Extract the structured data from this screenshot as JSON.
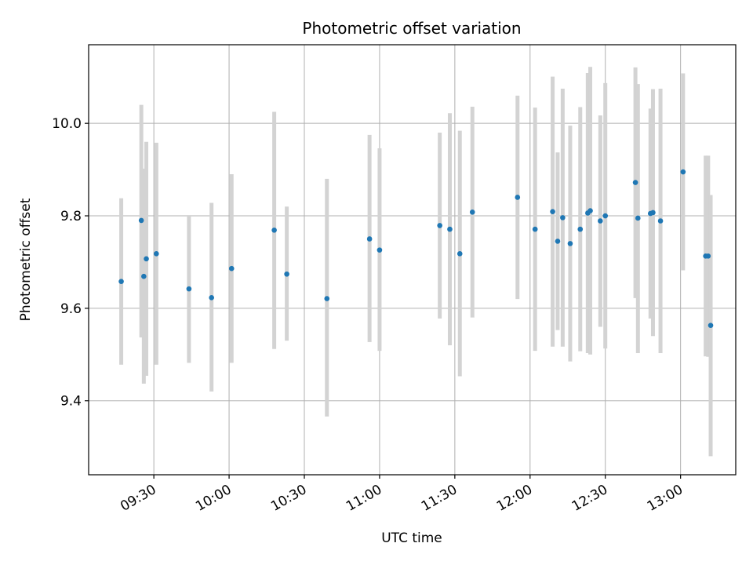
{
  "chart_data": {
    "type": "scatter",
    "title": "Photometric offset variation",
    "xlabel": "UTC time",
    "ylabel": "Photometric offset",
    "x_ticks": [
      "09:30",
      "10:00",
      "10:30",
      "11:00",
      "11:30",
      "12:00",
      "12:30",
      "13:00"
    ],
    "y_ticks": [
      "9.4",
      "9.6",
      "9.8",
      "10.0"
    ],
    "ylim": [
      9.24,
      10.17
    ],
    "xlim": [
      "09:04",
      "13:22"
    ],
    "grid": true,
    "colors": {
      "point": "#1f77b4",
      "errorbar": "#d3d3d3",
      "grid": "#b0b0b0"
    },
    "points": [
      {
        "x": "09:17",
        "y": 9.658,
        "low": 9.478,
        "high": 9.838
      },
      {
        "x": "09:25",
        "y": 9.79,
        "low": 9.537,
        "high": 10.04
      },
      {
        "x": "09:26",
        "y": 9.669,
        "low": 9.437,
        "high": 9.902
      },
      {
        "x": "09:27",
        "y": 9.707,
        "low": 9.454,
        "high": 9.96
      },
      {
        "x": "09:31",
        "y": 9.718,
        "low": 9.478,
        "high": 9.958
      },
      {
        "x": "09:44",
        "y": 9.642,
        "low": 9.482,
        "high": 9.8
      },
      {
        "x": "09:53",
        "y": 9.623,
        "low": 9.42,
        "high": 9.828
      },
      {
        "x": "10:01",
        "y": 9.686,
        "low": 9.482,
        "high": 9.89
      },
      {
        "x": "10:18",
        "y": 9.769,
        "low": 9.512,
        "high": 10.025
      },
      {
        "x": "10:23",
        "y": 9.674,
        "low": 9.53,
        "high": 9.82
      },
      {
        "x": "10:39",
        "y": 9.621,
        "low": 9.366,
        "high": 9.88
      },
      {
        "x": "10:56",
        "y": 9.75,
        "low": 9.527,
        "high": 9.975
      },
      {
        "x": "11:00",
        "y": 9.726,
        "low": 9.508,
        "high": 9.946
      },
      {
        "x": "11:24",
        "y": 9.779,
        "low": 9.578,
        "high": 9.98
      },
      {
        "x": "11:28",
        "y": 9.771,
        "low": 9.52,
        "high": 10.022
      },
      {
        "x": "11:32",
        "y": 9.718,
        "low": 9.453,
        "high": 9.984
      },
      {
        "x": "11:37",
        "y": 9.808,
        "low": 9.58,
        "high": 10.036
      },
      {
        "x": "11:55",
        "y": 9.84,
        "low": 9.62,
        "high": 10.06
      },
      {
        "x": "12:02",
        "y": 9.771,
        "low": 9.508,
        "high": 10.034
      },
      {
        "x": "12:09",
        "y": 9.809,
        "low": 9.517,
        "high": 10.101
      },
      {
        "x": "12:11",
        "y": 9.745,
        "low": 9.553,
        "high": 9.937
      },
      {
        "x": "12:13",
        "y": 9.796,
        "low": 9.517,
        "high": 10.075
      },
      {
        "x": "12:16",
        "y": 9.74,
        "low": 9.485,
        "high": 9.995
      },
      {
        "x": "12:20",
        "y": 9.771,
        "low": 9.507,
        "high": 10.035
      },
      {
        "x": "12:23",
        "y": 9.806,
        "low": 9.503,
        "high": 10.109
      },
      {
        "x": "12:24",
        "y": 9.811,
        "low": 9.5,
        "high": 10.122
      },
      {
        "x": "12:28",
        "y": 9.789,
        "low": 9.56,
        "high": 10.017
      },
      {
        "x": "12:30",
        "y": 9.8,
        "low": 9.513,
        "high": 10.087
      },
      {
        "x": "12:42",
        "y": 9.872,
        "low": 9.622,
        "high": 10.121
      },
      {
        "x": "12:43",
        "y": 9.795,
        "low": 9.503,
        "high": 10.085
      },
      {
        "x": "12:48",
        "y": 9.805,
        "low": 9.578,
        "high": 10.032
      },
      {
        "x": "12:49",
        "y": 9.807,
        "low": 9.54,
        "high": 10.074
      },
      {
        "x": "12:52",
        "y": 9.789,
        "low": 9.503,
        "high": 10.075
      },
      {
        "x": "13:01",
        "y": 9.895,
        "low": 9.682,
        "high": 10.108
      },
      {
        "x": "13:10",
        "y": 9.713,
        "low": 9.496,
        "high": 9.93
      },
      {
        "x": "13:11",
        "y": 9.713,
        "low": 9.495,
        "high": 9.93
      },
      {
        "x": "13:12",
        "y": 9.563,
        "low": 9.28,
        "high": 9.845
      }
    ]
  }
}
